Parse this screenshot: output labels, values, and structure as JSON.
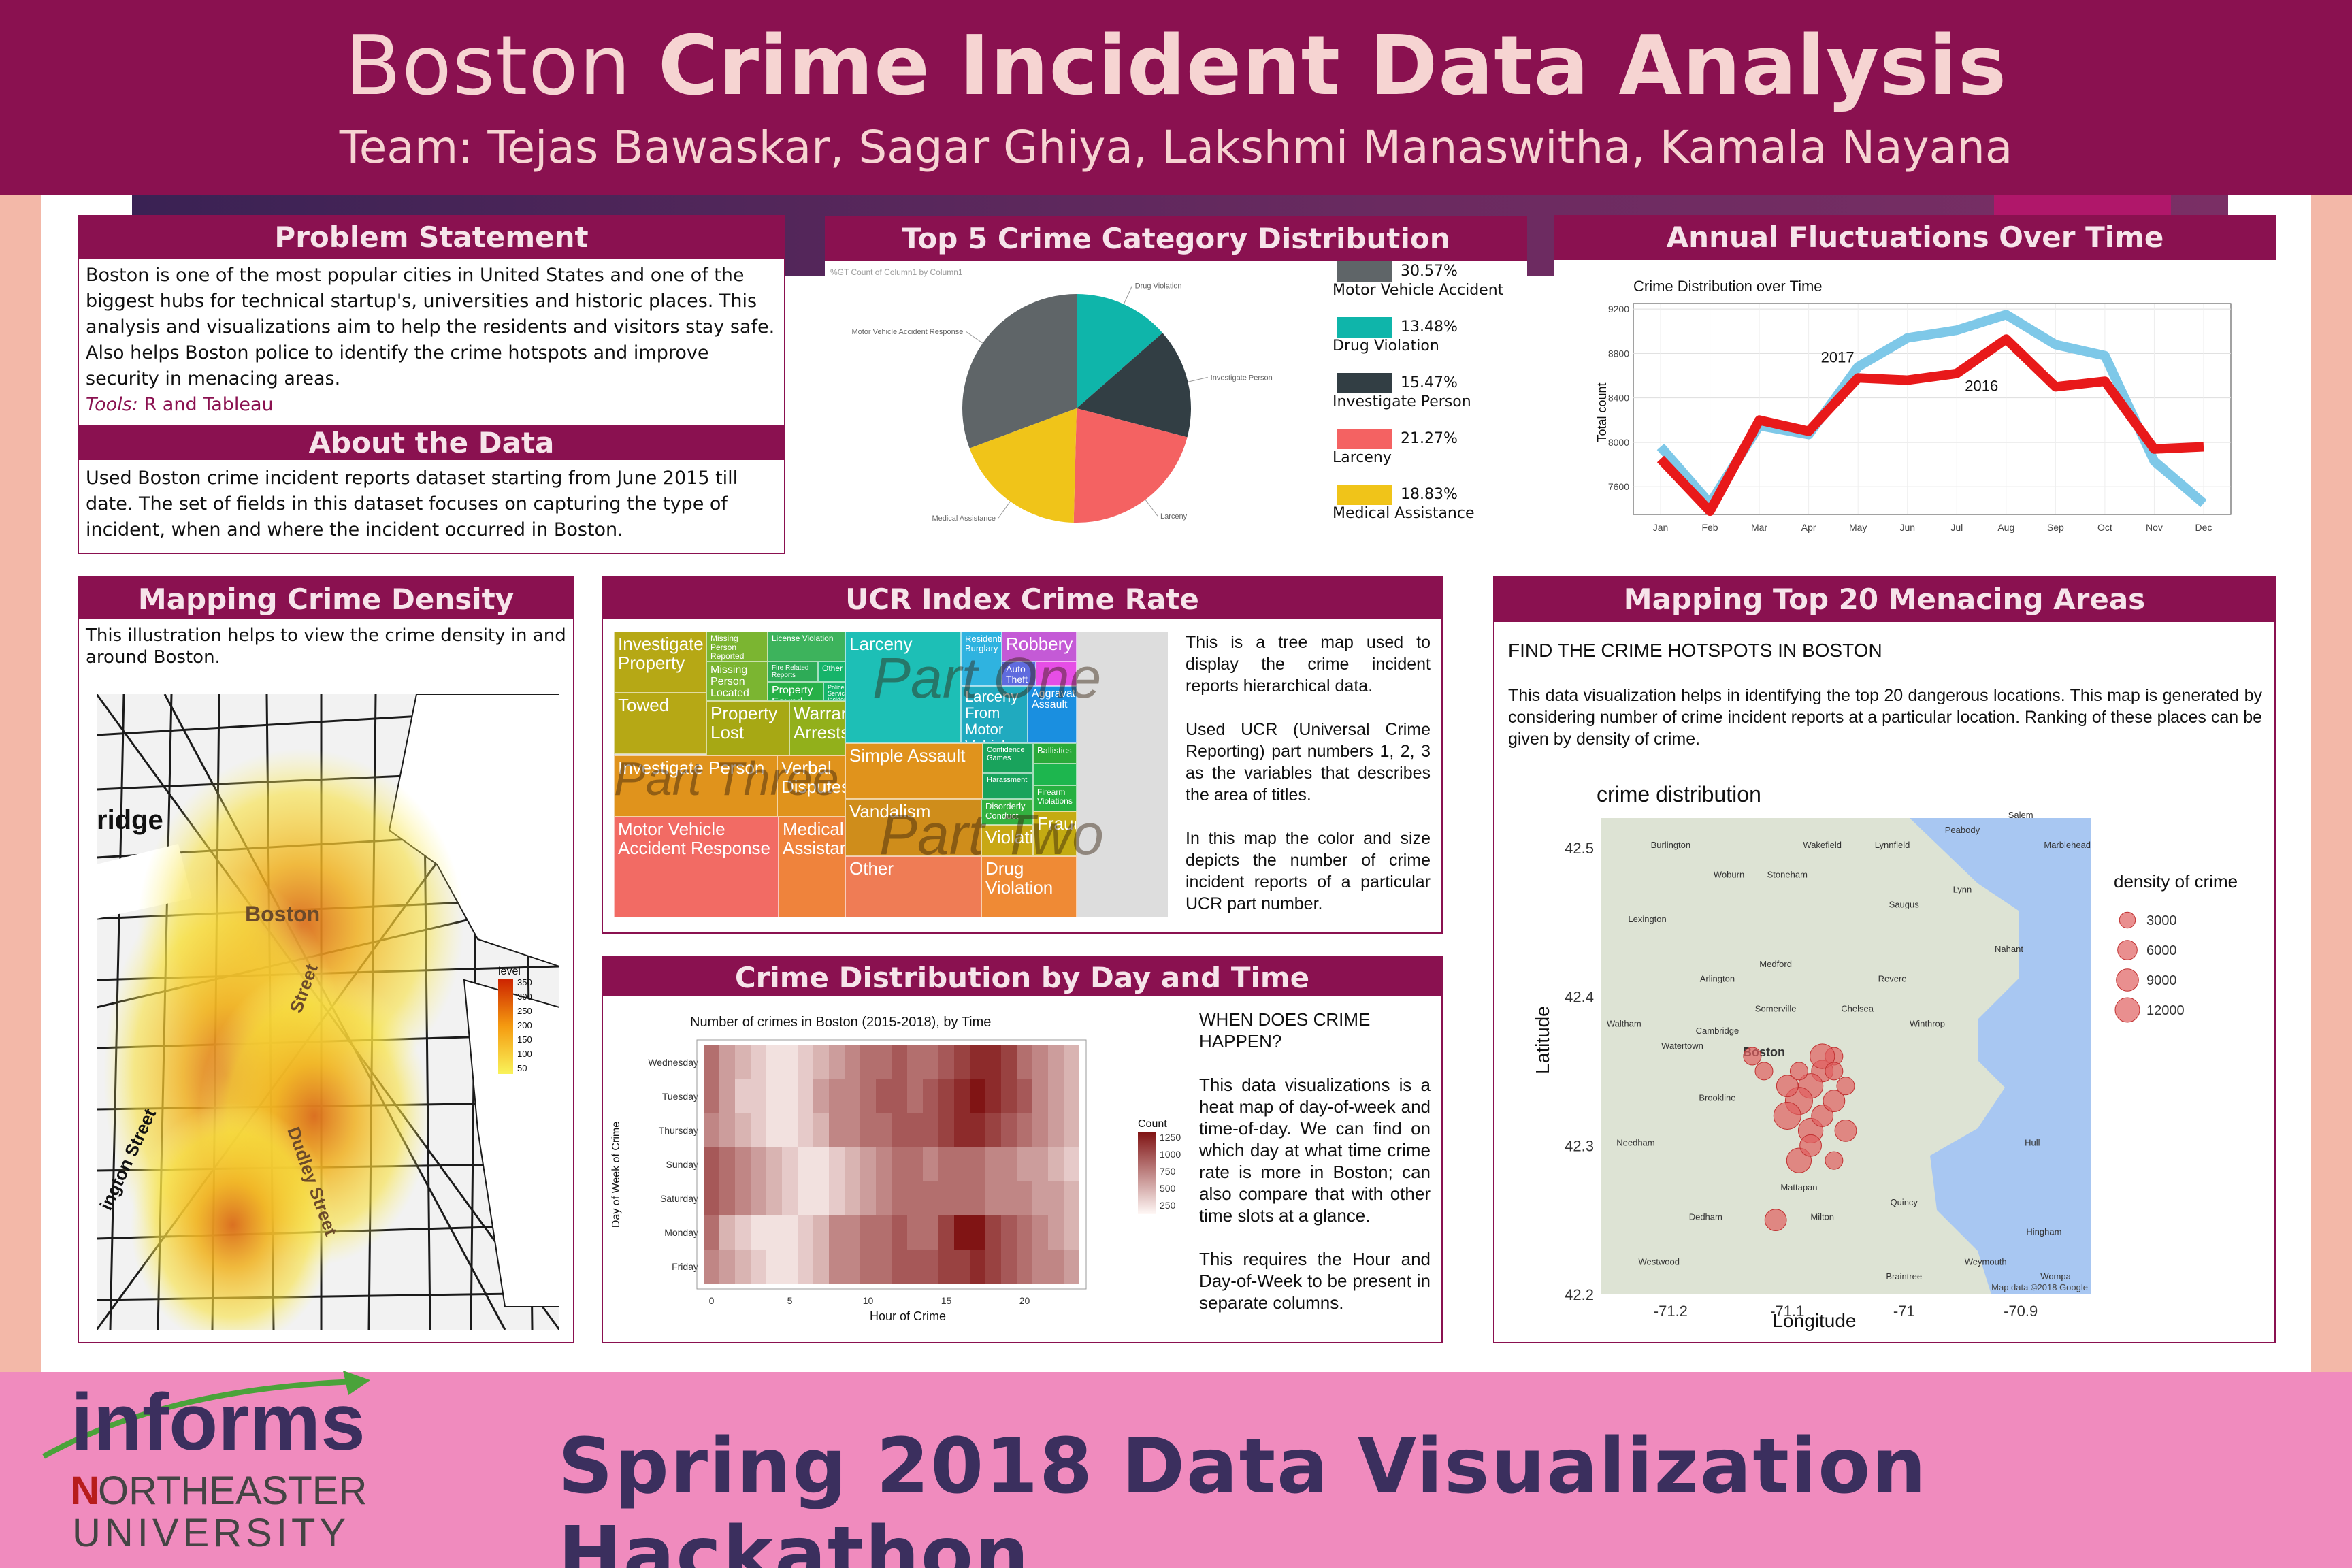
{
  "header": {
    "title_light": "Boston",
    "title_bold": "Crime Incident Data Analysis",
    "team": "Team: Tejas Bawaskar, Sagar Ghiya, Lakshmi Manaswitha, Kamala Nayana"
  },
  "problem": {
    "heading": "Problem Statement",
    "text": "Boston is one of the most popular cities in United States and one of the biggest hubs for technical startup's, universities and historic places. This analysis and visualizations aim to help the residents and visitors stay safe. Also helps Boston police to identify the crime hotspots and improve security in menacing areas.",
    "tools_label": "Tools:",
    "tools_value": "R and Tableau"
  },
  "about": {
    "heading": "About the Data",
    "text": "Used Boston crime incident reports dataset starting from June 2015 till date. The set of fields in this dataset focuses on capturing the type of incident, when and where the incident occurred in Boston."
  },
  "top5": {
    "heading": "Top 5 Crime Category Distribution",
    "chart_caption": "%GT Count of Column1 by Column1",
    "legend": [
      {
        "pct": "30.57%",
        "label": "Motor Vehicle Accident",
        "color": "#5f6568"
      },
      {
        "pct": "13.48%",
        "label": "Drug Violation",
        "color": "#0fb5aa"
      },
      {
        "pct": "15.47%",
        "label": "Investigate Person",
        "color": "#323e44"
      },
      {
        "pct": "21.27%",
        "label": "Larceny",
        "color": "#f46262"
      },
      {
        "pct": "18.83%",
        "label": "Medical Assistance",
        "color": "#f0c419"
      }
    ],
    "slice_labels": [
      "Motor Vehicle Accident Response",
      "Drug Violation",
      "Investigate Person",
      "Larceny",
      "Medical Assistance"
    ]
  },
  "annual": {
    "heading": "Annual Fluctuations Over Time",
    "title": "Crime Distribution over Time",
    "ylabel": "Total count",
    "series_label_2017": "2017",
    "series_label_2016": "2016"
  },
  "density": {
    "heading": "Mapping Crime Density",
    "text": "This illustration helps to view the crime density in and around Boston.",
    "legend_title": "level",
    "legend_values": [
      "350",
      "300",
      "250",
      "200",
      "150",
      "100",
      "50"
    ],
    "map_labels": [
      "ridge",
      "Boston",
      "Street",
      "Dudley Street",
      "ington Street"
    ]
  },
  "ucr": {
    "heading": "UCR Index Crime Rate",
    "p1": "This is a tree map used to display the crime incident reports hierarchical data.",
    "p2": "Used UCR (Universal Crime Reporting) part numbers 1, 2, 3 as the variables that describes the area of titles.",
    "p3": "In this map the color and size depicts the number of crime incident reports of a particular UCR part number.",
    "part_one": "Part One",
    "part_two": "Part Two",
    "part_three": "Part Three",
    "cells": {
      "investigate_property": "Investigate Property",
      "towed": "Towed",
      "missing_person_reported": "Missing Person Reported",
      "license_violation": "License Violation",
      "missing_person_located": "Missing Person Located",
      "fire_related": "Fire Related Reports",
      "other_small": "Other",
      "property_found": "Property Found",
      "police_service": "Police Service Incidents",
      "property_lost": "Property Lost",
      "warrant_arrests": "Warrant Arrests",
      "investigate_person": "Investigate Person",
      "verbal_disputes": "Verbal Disputes",
      "motor_vehicle": "Motor Vehicle Accident Response",
      "medical_assistance": "Medical Assistance",
      "larceny": "Larceny",
      "residential_burglary": "Residential Burglary",
      "robbery": "Robbery",
      "auto_theft": "Auto Theft",
      "larceny_motor": "Larceny From Motor Vehicle",
      "aggravated_assault": "Aggravated Assault",
      "simple_assault": "Simple Assault",
      "confidence_games": "Confidence Games",
      "ballistics": "Ballistics",
      "harassment": "Harassment",
      "vandalism": "Vandalism",
      "disorderly": "Disorderly Conduct",
      "firearm": "Firearm Violations",
      "violations": "Violations",
      "fraud": "Fraud",
      "other": "Other",
      "drug_violation": "Drug Violation"
    }
  },
  "daytime": {
    "heading": "Crime Distribution by Day and Time",
    "chart_title": "Number of crimes in Boston (2015-2018), by Time",
    "ylabel": "Day of Week of Crime",
    "xlabel": "Hour of Crime",
    "legend_title": "Count",
    "legend_values": [
      "1250",
      "1000",
      "750",
      "500",
      "250"
    ],
    "q": "WHEN DOES CRIME HAPPEN?",
    "p1": "This data visualizations is a heat map of day-of-week and time-of-day. We can find on which day at what time crime rate is more in Boston; can also compare that with other time slots at a glance.",
    "p2": "This requires the Hour and Day-of-Week to be present in separate columns."
  },
  "menacing": {
    "heading": "Mapping Top 20 Menacing Areas",
    "subtitle": "FIND THE CRIME HOTSPOTS IN BOSTON",
    "text": "This data visualization helps in identifying the top 20 dangerous locations. This map is generated by considering number of crime incident reports at a particular location. Ranking of these places can be given by density of crime.",
    "chart_title": "crime distribution",
    "ylabel": "Latitude",
    "xlabel": "Longitude",
    "legend_title": "density of crime",
    "legend_values": [
      "3000",
      "6000",
      "9000",
      "12000"
    ],
    "place_labels": [
      "Boston",
      "Cambridge",
      "Somerville",
      "Medford",
      "Brookline",
      "Waltham",
      "Needham",
      "Dedham",
      "Milton",
      "Quincy",
      "Revere",
      "Lynn",
      "Salem",
      "Woburn",
      "Burlington",
      "Lexington",
      "Arlington",
      "Chelsea",
      "Watertown",
      "Winthrop",
      "Hull",
      "Hingham",
      "Weymouth",
      "Braintree",
      "Lynnfield",
      "Saugus",
      "Peabody",
      "Marblehead",
      "Nahant",
      "Wakefield",
      "Stoneham",
      "Mattapan",
      "Westwood",
      "Wompa"
    ],
    "map_credit": "Map data ©2018 Google"
  },
  "footer": {
    "text": "Spring 2018 Data Visualization Hackathon",
    "logo_main": "informs",
    "logo_n": "N",
    "logo_ortheastern": "ORTHEASTERN",
    "logo_university": "UNIVERSITY"
  },
  "chart_data": [
    {
      "type": "pie",
      "title": "Top 5 Crime Category Distribution",
      "categories": [
        "Motor Vehicle Accident Response",
        "Drug Violation",
        "Investigate Person",
        "Larceny",
        "Medical Assistance"
      ],
      "values": [
        30.57,
        13.48,
        15.47,
        21.27,
        18.83
      ],
      "colors": [
        "#5f6568",
        "#0fb5aa",
        "#323e44",
        "#f46262",
        "#f0c419"
      ]
    },
    {
      "type": "line",
      "title": "Crime Distribution over Time",
      "ylabel": "Total count",
      "categories": [
        "Jan",
        "Feb",
        "Mar",
        "Apr",
        "May",
        "Jun",
        "Jul",
        "Aug",
        "Sep",
        "Oct",
        "Nov",
        "Dec"
      ],
      "yticks": [
        7600,
        8000,
        8400,
        8800,
        9200
      ],
      "ylim": [
        7350,
        9250
      ],
      "series": [
        {
          "name": "2017",
          "color": "#7ec8e8",
          "values": [
            7960,
            7450,
            8150,
            8070,
            8680,
            8940,
            9010,
            9150,
            8880,
            8780,
            7830,
            7450
          ]
        },
        {
          "name": "2016",
          "color": "#e8191a",
          "values": [
            7850,
            7380,
            8200,
            8100,
            8580,
            8560,
            8620,
            8930,
            8500,
            8550,
            7940,
            7960
          ]
        }
      ]
    },
    {
      "type": "heatmap",
      "title": "Number of crimes in Boston (2015-2018), by Time",
      "ylabel": "Day of Week of Crime",
      "xlabel": "Hour of Crime",
      "rows": [
        "Wednesday",
        "Tuesday",
        "Thursday",
        "Sunday",
        "Saturday",
        "Monday",
        "Friday"
      ],
      "x_ticks": [
        0,
        5,
        10,
        15,
        20
      ]
    },
    {
      "type": "scatter",
      "title": "crime distribution",
      "xlabel": "Longitude",
      "ylabel": "Latitude",
      "x_ticks": [
        -71.2,
        -71.1,
        -71.0,
        -70.9
      ],
      "y_ticks": [
        42.2,
        42.3,
        42.4,
        42.5
      ],
      "points": [
        {
          "lon": -71.06,
          "lat": 42.36,
          "density": 3000
        },
        {
          "lon": -71.07,
          "lat": 42.35,
          "density": 6000
        },
        {
          "lon": -71.08,
          "lat": 42.34,
          "density": 9000
        },
        {
          "lon": -71.09,
          "lat": 42.33,
          "density": 12000
        },
        {
          "lon": -71.1,
          "lat": 42.32,
          "density": 12000
        },
        {
          "lon": -71.08,
          "lat": 42.31,
          "density": 9000
        },
        {
          "lon": -71.07,
          "lat": 42.32,
          "density": 6000
        },
        {
          "lon": -71.06,
          "lat": 42.33,
          "density": 6000
        },
        {
          "lon": -71.05,
          "lat": 42.34,
          "density": 3000
        },
        {
          "lon": -71.12,
          "lat": 42.35,
          "density": 3000
        },
        {
          "lon": -71.13,
          "lat": 42.36,
          "density": 3000
        },
        {
          "lon": -71.09,
          "lat": 42.29,
          "density": 9000
        },
        {
          "lon": -71.08,
          "lat": 42.3,
          "density": 6000
        },
        {
          "lon": -71.11,
          "lat": 42.25,
          "density": 6000
        },
        {
          "lon": -71.06,
          "lat": 42.29,
          "density": 3000
        },
        {
          "lon": -71.05,
          "lat": 42.31,
          "density": 6000
        },
        {
          "lon": -71.1,
          "lat": 42.34,
          "density": 6000
        },
        {
          "lon": -71.07,
          "lat": 42.36,
          "density": 9000
        },
        {
          "lon": -71.06,
          "lat": 42.35,
          "density": 3000
        },
        {
          "lon": -71.09,
          "lat": 42.35,
          "density": 3000
        }
      ]
    }
  ]
}
